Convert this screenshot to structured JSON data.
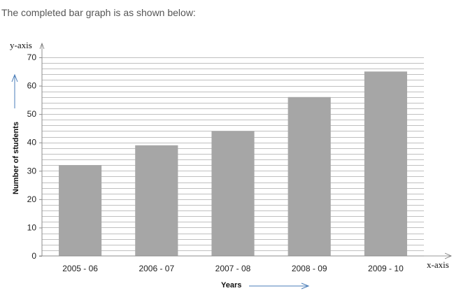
{
  "intro_text": "The completed bar graph is as shown below:",
  "chart_data": {
    "type": "bar",
    "categories": [
      "2005 - 06",
      "2006 - 07",
      "2007 - 08",
      "2008 - 09",
      "2009 - 10"
    ],
    "values": [
      32,
      39,
      44,
      56,
      65
    ],
    "xlabel": "Years",
    "ylabel": "Number of students",
    "ylim": [
      0,
      70
    ],
    "yticks": [
      0,
      10,
      20,
      30,
      40,
      50,
      60,
      70
    ],
    "minor_step": 2,
    "grid": true,
    "y_axis_tag": "y-axis",
    "x_axis_tag": "x-axis",
    "bar_color": "#a6a6a6",
    "grid_color": "#c0c0c0",
    "arrow_color": "#4a7db8"
  }
}
